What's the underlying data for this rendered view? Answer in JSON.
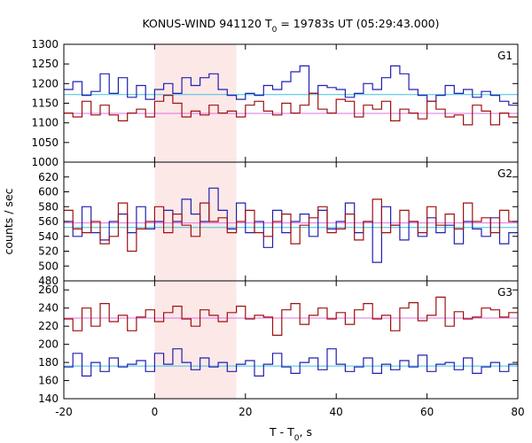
{
  "chart_data": {
    "type": "line",
    "title_main": "KONUS-WIND 941120 T",
    "title_sub": "0",
    "title_rest": " = 19783s UT (05:29:43.000)",
    "xlabel_main": "T - T",
    "xlabel_sub": "0",
    "xlabel_rest": ", s",
    "ylabel": "counts / sec",
    "xlim": [
      -20,
      80
    ],
    "x_ticks": [
      -20,
      0,
      20,
      40,
      60,
      80
    ],
    "highlight": {
      "x_start": 0,
      "x_end": 18,
      "color": "#fde8e8"
    },
    "bin_start": -20,
    "bin_width": 2,
    "colors": {
      "red": "#a01010",
      "blue": "#2020b0",
      "pink": "#e070e0",
      "cyan": "#40c0e0",
      "frame": "#000000"
    },
    "panels": [
      {
        "label": "G1",
        "ylim": [
          1000,
          1300
        ],
        "y_ticks": [
          1000,
          1050,
          1100,
          1150,
          1200,
          1250,
          1300
        ],
        "series": [
          {
            "color_key": "blue",
            "bg": 1172,
            "values": [
              1185,
              1205,
              1170,
              1180,
              1225,
              1175,
              1215,
              1165,
              1195,
              1160,
              1185,
              1200,
              1175,
              1215,
              1195,
              1215,
              1225,
              1185,
              1170,
              1160,
              1175,
              1170,
              1195,
              1185,
              1205,
              1230,
              1245,
              1175,
              1195,
              1190,
              1185,
              1165,
              1175,
              1200,
              1185,
              1215,
              1245,
              1225,
              1185,
              1170,
              1155,
              1170,
              1195,
              1175,
              1185,
              1165,
              1180,
              1170,
              1155,
              1145
            ]
          },
          {
            "color_key": "red",
            "bg": 1124,
            "values": [
              1125,
              1115,
              1155,
              1120,
              1145,
              1120,
              1105,
              1125,
              1135,
              1115,
              1155,
              1170,
              1150,
              1115,
              1130,
              1120,
              1145,
              1125,
              1130,
              1115,
              1145,
              1155,
              1130,
              1120,
              1150,
              1125,
              1145,
              1175,
              1135,
              1125,
              1160,
              1155,
              1115,
              1145,
              1135,
              1155,
              1105,
              1135,
              1125,
              1110,
              1155,
              1135,
              1115,
              1120,
              1095,
              1145,
              1130,
              1095,
              1125,
              1115
            ]
          }
        ]
      },
      {
        "label": "G2",
        "ylim": [
          480,
          640
        ],
        "y_ticks": [
          480,
          500,
          520,
          540,
          560,
          580,
          600,
          620
        ],
        "series": [
          {
            "color_key": "blue",
            "bg": 552,
            "values": [
              560,
              540,
              580,
              545,
              535,
              560,
              570,
              545,
              580,
              550,
              560,
              575,
              560,
              590,
              570,
              560,
              605,
              575,
              550,
              585,
              545,
              560,
              525,
              575,
              545,
              560,
              570,
              540,
              575,
              550,
              560,
              585,
              545,
              560,
              505,
              580,
              555,
              535,
              560,
              540,
              565,
              545,
              555,
              530,
              560,
              550,
              540,
              565,
              530,
              545
            ]
          },
          {
            "color_key": "red",
            "bg": 558,
            "values": [
              575,
              550,
              545,
              560,
              530,
              540,
              585,
              520,
              550,
              560,
              580,
              545,
              570,
              555,
              540,
              585,
              560,
              565,
              545,
              560,
              575,
              545,
              540,
              560,
              570,
              530,
              555,
              565,
              580,
              545,
              550,
              570,
              535,
              560,
              590,
              545,
              555,
              575,
              560,
              545,
              580,
              555,
              570,
              550,
              585,
              560,
              565,
              545,
              575,
              560
            ]
          }
        ]
      },
      {
        "label": "G3",
        "ylim": [
          140,
          270
        ],
        "y_ticks": [
          140,
          160,
          180,
          200,
          220,
          240,
          260
        ],
        "series": [
          {
            "color_key": "red",
            "bg": 229,
            "values": [
              228,
              215,
              240,
              220,
              245,
              225,
              232,
              215,
              230,
              238,
              225,
              235,
              242,
              228,
              220,
              238,
              232,
              225,
              235,
              242,
              228,
              232,
              230,
              210,
              238,
              245,
              222,
              232,
              240,
              228,
              235,
              222,
              238,
              245,
              228,
              232,
              215,
              240,
              246,
              226,
              232,
              252,
              220,
              236,
              228,
              230,
              240,
              238,
              230,
              235
            ]
          },
          {
            "color_key": "blue",
            "bg": 176,
            "values": [
              175,
              190,
              165,
              180,
              170,
              185,
              175,
              178,
              182,
              170,
              190,
              178,
              195,
              180,
              172,
              185,
              175,
              180,
              170,
              178,
              182,
              165,
              178,
              190,
              175,
              168,
              180,
              185,
              172,
              195,
              178,
              170,
              175,
              185,
              168,
              178,
              172,
              182,
              175,
              188,
              170,
              178,
              180,
              172,
              185,
              168,
              175,
              180,
              170,
              178
            ]
          }
        ]
      }
    ]
  }
}
